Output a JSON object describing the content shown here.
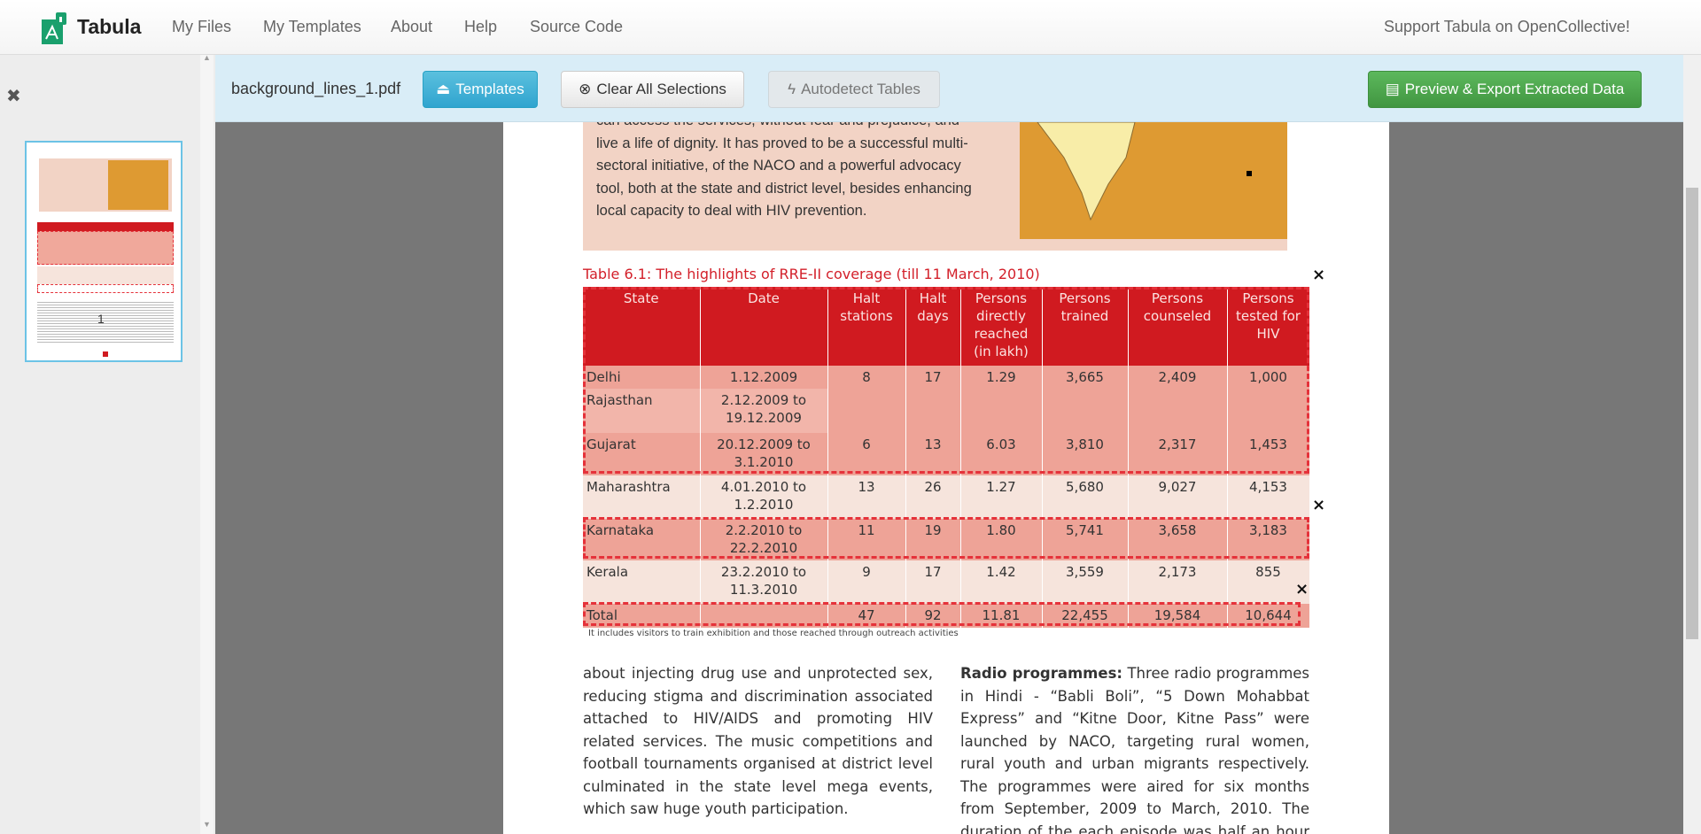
{
  "nav": {
    "brand": "Tabula",
    "links": [
      "My Files",
      "My Templates",
      "About",
      "Help",
      "Source Code"
    ],
    "support": "Support Tabula on OpenCollective!"
  },
  "sidebar": {
    "page_number": "1"
  },
  "toolbar": {
    "filename": "background_lines_1.pdf",
    "templates": "Templates",
    "clear": "Clear All Selections",
    "autodetect": "Autodetect Tables",
    "export": "Preview & Export Extracted Data"
  },
  "colors": {
    "toolbar_bg": "#d9edf7",
    "templates_btn": "#39b3d7",
    "export_btn": "#47a447",
    "selection": "#e5323a",
    "table_header": "#d01a20"
  },
  "pdf": {
    "intro_lines": [
      "can access the services, without fear and prejudice, and",
      "live a life of dignity. It has proved to be a successful multi-",
      "sectoral initiative, of the NACO and a powerful advocacy",
      "tool, both at the state and district level, besides enhancing",
      "local capacity to deal with HIV prevention."
    ],
    "table_title": "Table 6.1: The highlights of RRE-II coverage (till 11 March, 2010)",
    "headers": [
      "State",
      "Date",
      "Halt stations",
      "Halt days",
      "Persons directly reached (in lakh)",
      "Persons trained",
      "Persons counseled",
      "Persons tested for HIV"
    ],
    "rows": [
      [
        "Delhi",
        "1.12.2009",
        "8",
        "17",
        "1.29",
        "3,665",
        "2,409",
        "1,000"
      ],
      [
        "Rajasthan",
        "2.12.2009 to 19.12.2009",
        "",
        "",
        "",
        "",
        "",
        ""
      ],
      [
        "Gujarat",
        "20.12.2009 to 3.1.2010",
        "6",
        "13",
        "6.03",
        "3,810",
        "2,317",
        "1,453"
      ],
      [
        "Maharashtra",
        "4.01.2010 to 1.2.2010",
        "13",
        "26",
        "1.27",
        "5,680",
        "9,027",
        "4,153"
      ],
      [
        "Karnataka",
        "2.2.2010 to 22.2.2010",
        "11",
        "19",
        "1.80",
        "5,741",
        "3,658",
        "3,183"
      ],
      [
        "Kerala",
        "23.2.2010 to 11.3.2010",
        "9",
        "17",
        "1.42",
        "3,559",
        "2,173",
        "855"
      ],
      [
        "Total",
        "",
        "47",
        "92",
        "11.81",
        "22,455",
        "19,584",
        "10,644"
      ]
    ],
    "footnote": "It includes visitors to train exhibition and those reached through outreach activities",
    "col1": "about injecting drug use and unprotected sex, reducing stigma and discrimination associated attached to HIV/AIDS and promoting HIV related services. The music competitions and football tournaments organised at district level culminated in the state level mega events, which saw huge youth participation.",
    "col2_bold": "Radio programmes:",
    "col2": " Three radio programmes in Hindi - “Babli Boli”, “5 Down Mohabbat Express” and “Kitne Door, Kitne Pass” were launched by NACO, targeting rural women, rural youth and urban migrants respectively. The programmes were aired for six months from September, 2009 to March, 2010. The duration of the each episode was half an hour and two episodes"
  }
}
